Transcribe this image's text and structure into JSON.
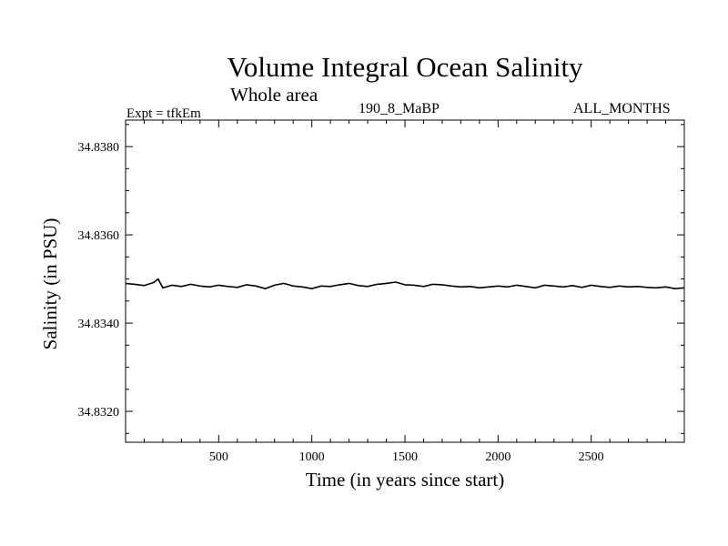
{
  "header": {
    "title": "Volume Integral Ocean Salinity",
    "subtitle": "Whole area",
    "experiment": "Expt = tfkEm",
    "run_label": "190_8_MaBP",
    "months_label": "ALL_MONTHS"
  },
  "chart_data": {
    "type": "line",
    "title": "Volume Integral Ocean Salinity",
    "subtitle": "Whole area",
    "xlabel": "Time (in years since start)",
    "ylabel": "Salinity (in PSU)",
    "xlim": [
      0,
      3000
    ],
    "ylim": [
      34.8313,
      34.8386
    ],
    "x_ticks": [
      500,
      1000,
      1500,
      2000,
      2500
    ],
    "x_tick_labels": [
      "500",
      "1000",
      "1500",
      "2000",
      "2500"
    ],
    "y_ticks": [
      34.832,
      34.834,
      34.836,
      34.838
    ],
    "y_tick_labels": [
      "34.8320",
      "34.8340",
      "34.8360",
      "34.8380"
    ],
    "grid": false,
    "line_color": "#000000",
    "series": [
      {
        "x": [
          0,
          50,
          100,
          150,
          175,
          200,
          250,
          300,
          350,
          400,
          450,
          500,
          550,
          600,
          650,
          700,
          750,
          800,
          850,
          900,
          950,
          1000,
          1050,
          1100,
          1150,
          1200,
          1250,
          1300,
          1350,
          1400,
          1450,
          1500,
          1550,
          1600,
          1650,
          1700,
          1750,
          1800,
          1850,
          1900,
          1950,
          2000,
          2050,
          2100,
          2150,
          2200,
          2250,
          2300,
          2350,
          2400,
          2450,
          2500,
          2550,
          2600,
          2650,
          2700,
          2750,
          2800,
          2850,
          2900,
          2950,
          3000
        ],
        "values": [
          34.8349,
          34.83488,
          34.83485,
          34.83492,
          34.835,
          34.8348,
          34.83486,
          34.83483,
          34.83488,
          34.83484,
          34.83482,
          34.83486,
          34.83483,
          34.83481,
          34.83487,
          34.83484,
          34.83478,
          34.83486,
          34.8349,
          34.83484,
          34.83482,
          34.83478,
          34.83484,
          34.83483,
          34.83487,
          34.8349,
          34.83485,
          34.83483,
          34.83488,
          34.8349,
          34.83493,
          34.83487,
          34.83486,
          34.83483,
          34.83488,
          34.83487,
          34.83484,
          34.83482,
          34.83483,
          34.8348,
          34.83482,
          34.83484,
          34.83482,
          34.83486,
          34.83483,
          34.8348,
          34.83486,
          34.83484,
          34.83482,
          34.83485,
          34.83481,
          34.83486,
          34.83483,
          34.83481,
          34.83484,
          34.83482,
          34.83483,
          34.83481,
          34.8348,
          34.83482,
          34.83478,
          34.8348
        ]
      }
    ]
  }
}
